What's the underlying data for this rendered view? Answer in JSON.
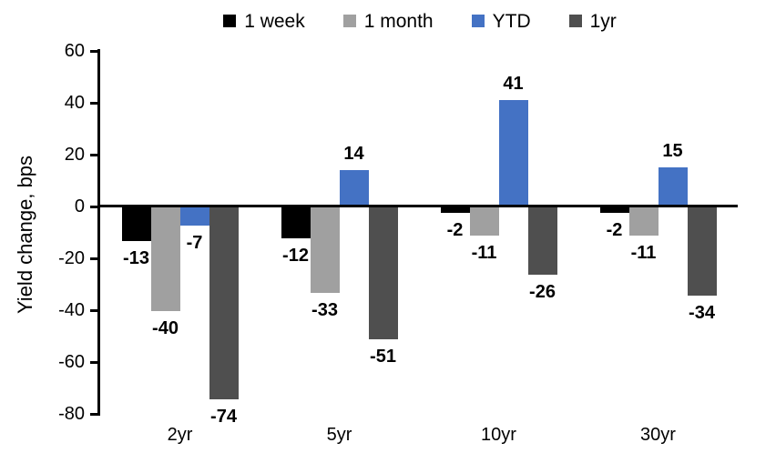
{
  "chart_data": {
    "type": "bar",
    "title": "",
    "ylabel": "Yield change, bps",
    "xlabel": "",
    "categories": [
      "2yr",
      "5yr",
      "10yr",
      "30yr"
    ],
    "series": [
      {
        "name": "1 week",
        "color": "#000000",
        "values": [
          -13,
          -12,
          -2,
          -2
        ]
      },
      {
        "name": "1 month",
        "color": "#A0A0A0",
        "values": [
          -40,
          -33,
          -11,
          -11
        ]
      },
      {
        "name": "YTD",
        "color": "#4472C4",
        "values": [
          -7,
          14,
          41,
          15
        ]
      },
      {
        "name": "1yr",
        "color": "#4F4F4F",
        "values": [
          -74,
          -51,
          -26,
          -34
        ]
      }
    ],
    "ylim": [
      -80,
      60
    ],
    "yticks": [
      60,
      40,
      20,
      0,
      -20,
      -40,
      -60,
      -80
    ],
    "data_labels": true,
    "legend_position": "top",
    "grid": false,
    "axis_color": "#000000"
  }
}
